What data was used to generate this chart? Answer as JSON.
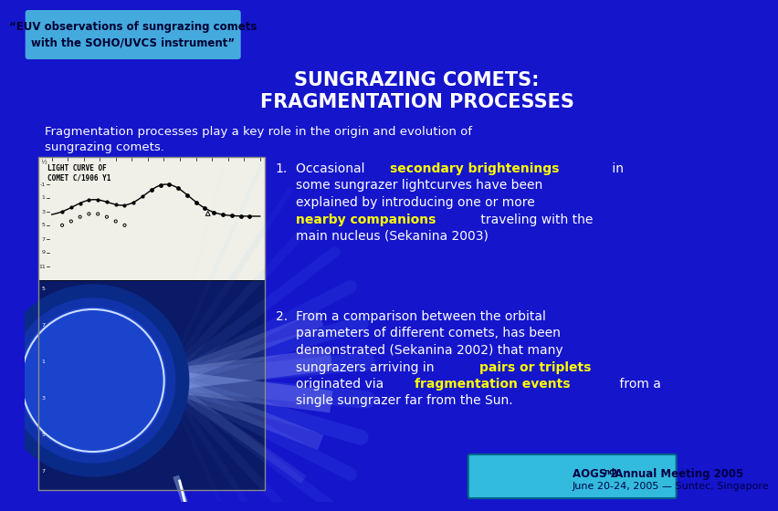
{
  "bg_color": "#1515cc",
  "header_box_bg": "#44aadd",
  "header_box_border": "#88ccff",
  "header_text_line1": "“EUV observations of sungrazing comets",
  "header_text_line2": "with the SOHO/UVCS instrument”",
  "header_text_color": "#000033",
  "title_line1": "SUNGRAZING COMETS:",
  "title_line2": "FRAGMENTATION PROCESSES",
  "title_color": "#ffffff",
  "intro_text_line1": "Fragmentation processes play a key role in the origin and evolution of",
  "intro_text_line2": "sungrazing comets.",
  "intro_color": "#ffffff",
  "footer_box_bg": "#33bbdd",
  "footer_line1": "AOGS 2",
  "footer_line1b": "nd",
  "footer_line1c": " Annual Meeting 2005",
  "footer_line2": "June 20-24, 2005 — Suntec, Singapore",
  "footer_text_color": "#000044",
  "lc_bg": "#f0f0e8",
  "lc_title1": "LIGHT CURVE OF",
  "lc_title2": "COMET C/1906 Y1",
  "solar_blue": "#1a5acc",
  "solar_dark": "#0a2a88",
  "solar_ring": "#ccddff",
  "corona_color": "#aaccff"
}
